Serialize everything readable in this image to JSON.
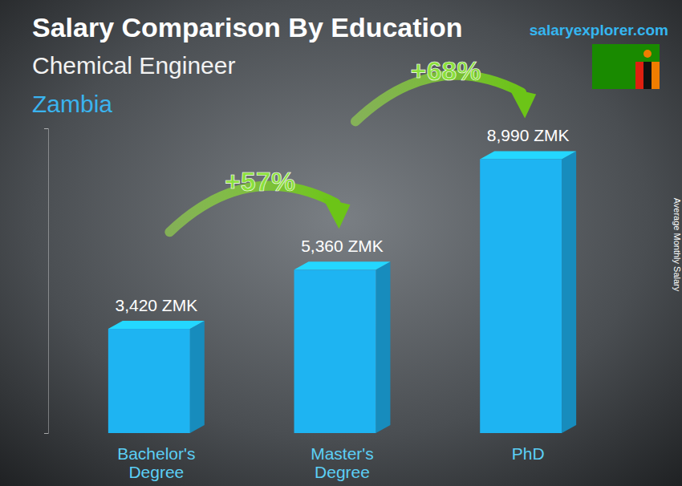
{
  "chart_data": {
    "type": "bar",
    "title": "Salary Comparison By Education",
    "subtitle": "Chemical Engineer",
    "country": "Zambia",
    "source": "salaryexplorer.com",
    "y_label": "Average Monthly Salary",
    "categories": [
      "Bachelor's Degree",
      "Master's Degree",
      "PhD"
    ],
    "values": [
      3420,
      5360,
      8990
    ],
    "value_labels": [
      "3,420 ZMK",
      "5,360 ZMK",
      "8,990 ZMK"
    ],
    "data_labels": true,
    "color": "#1eb4f2",
    "ylim": [
      0,
      10000
    ],
    "yticks": [
      0,
      10000
    ],
    "tick_labels": "x",
    "grid": false,
    "annotations": [
      {
        "text": "+57%",
        "from": 0,
        "to": 1
      },
      {
        "text": "+68%",
        "from": 1,
        "to": 2
      }
    ]
  }
}
